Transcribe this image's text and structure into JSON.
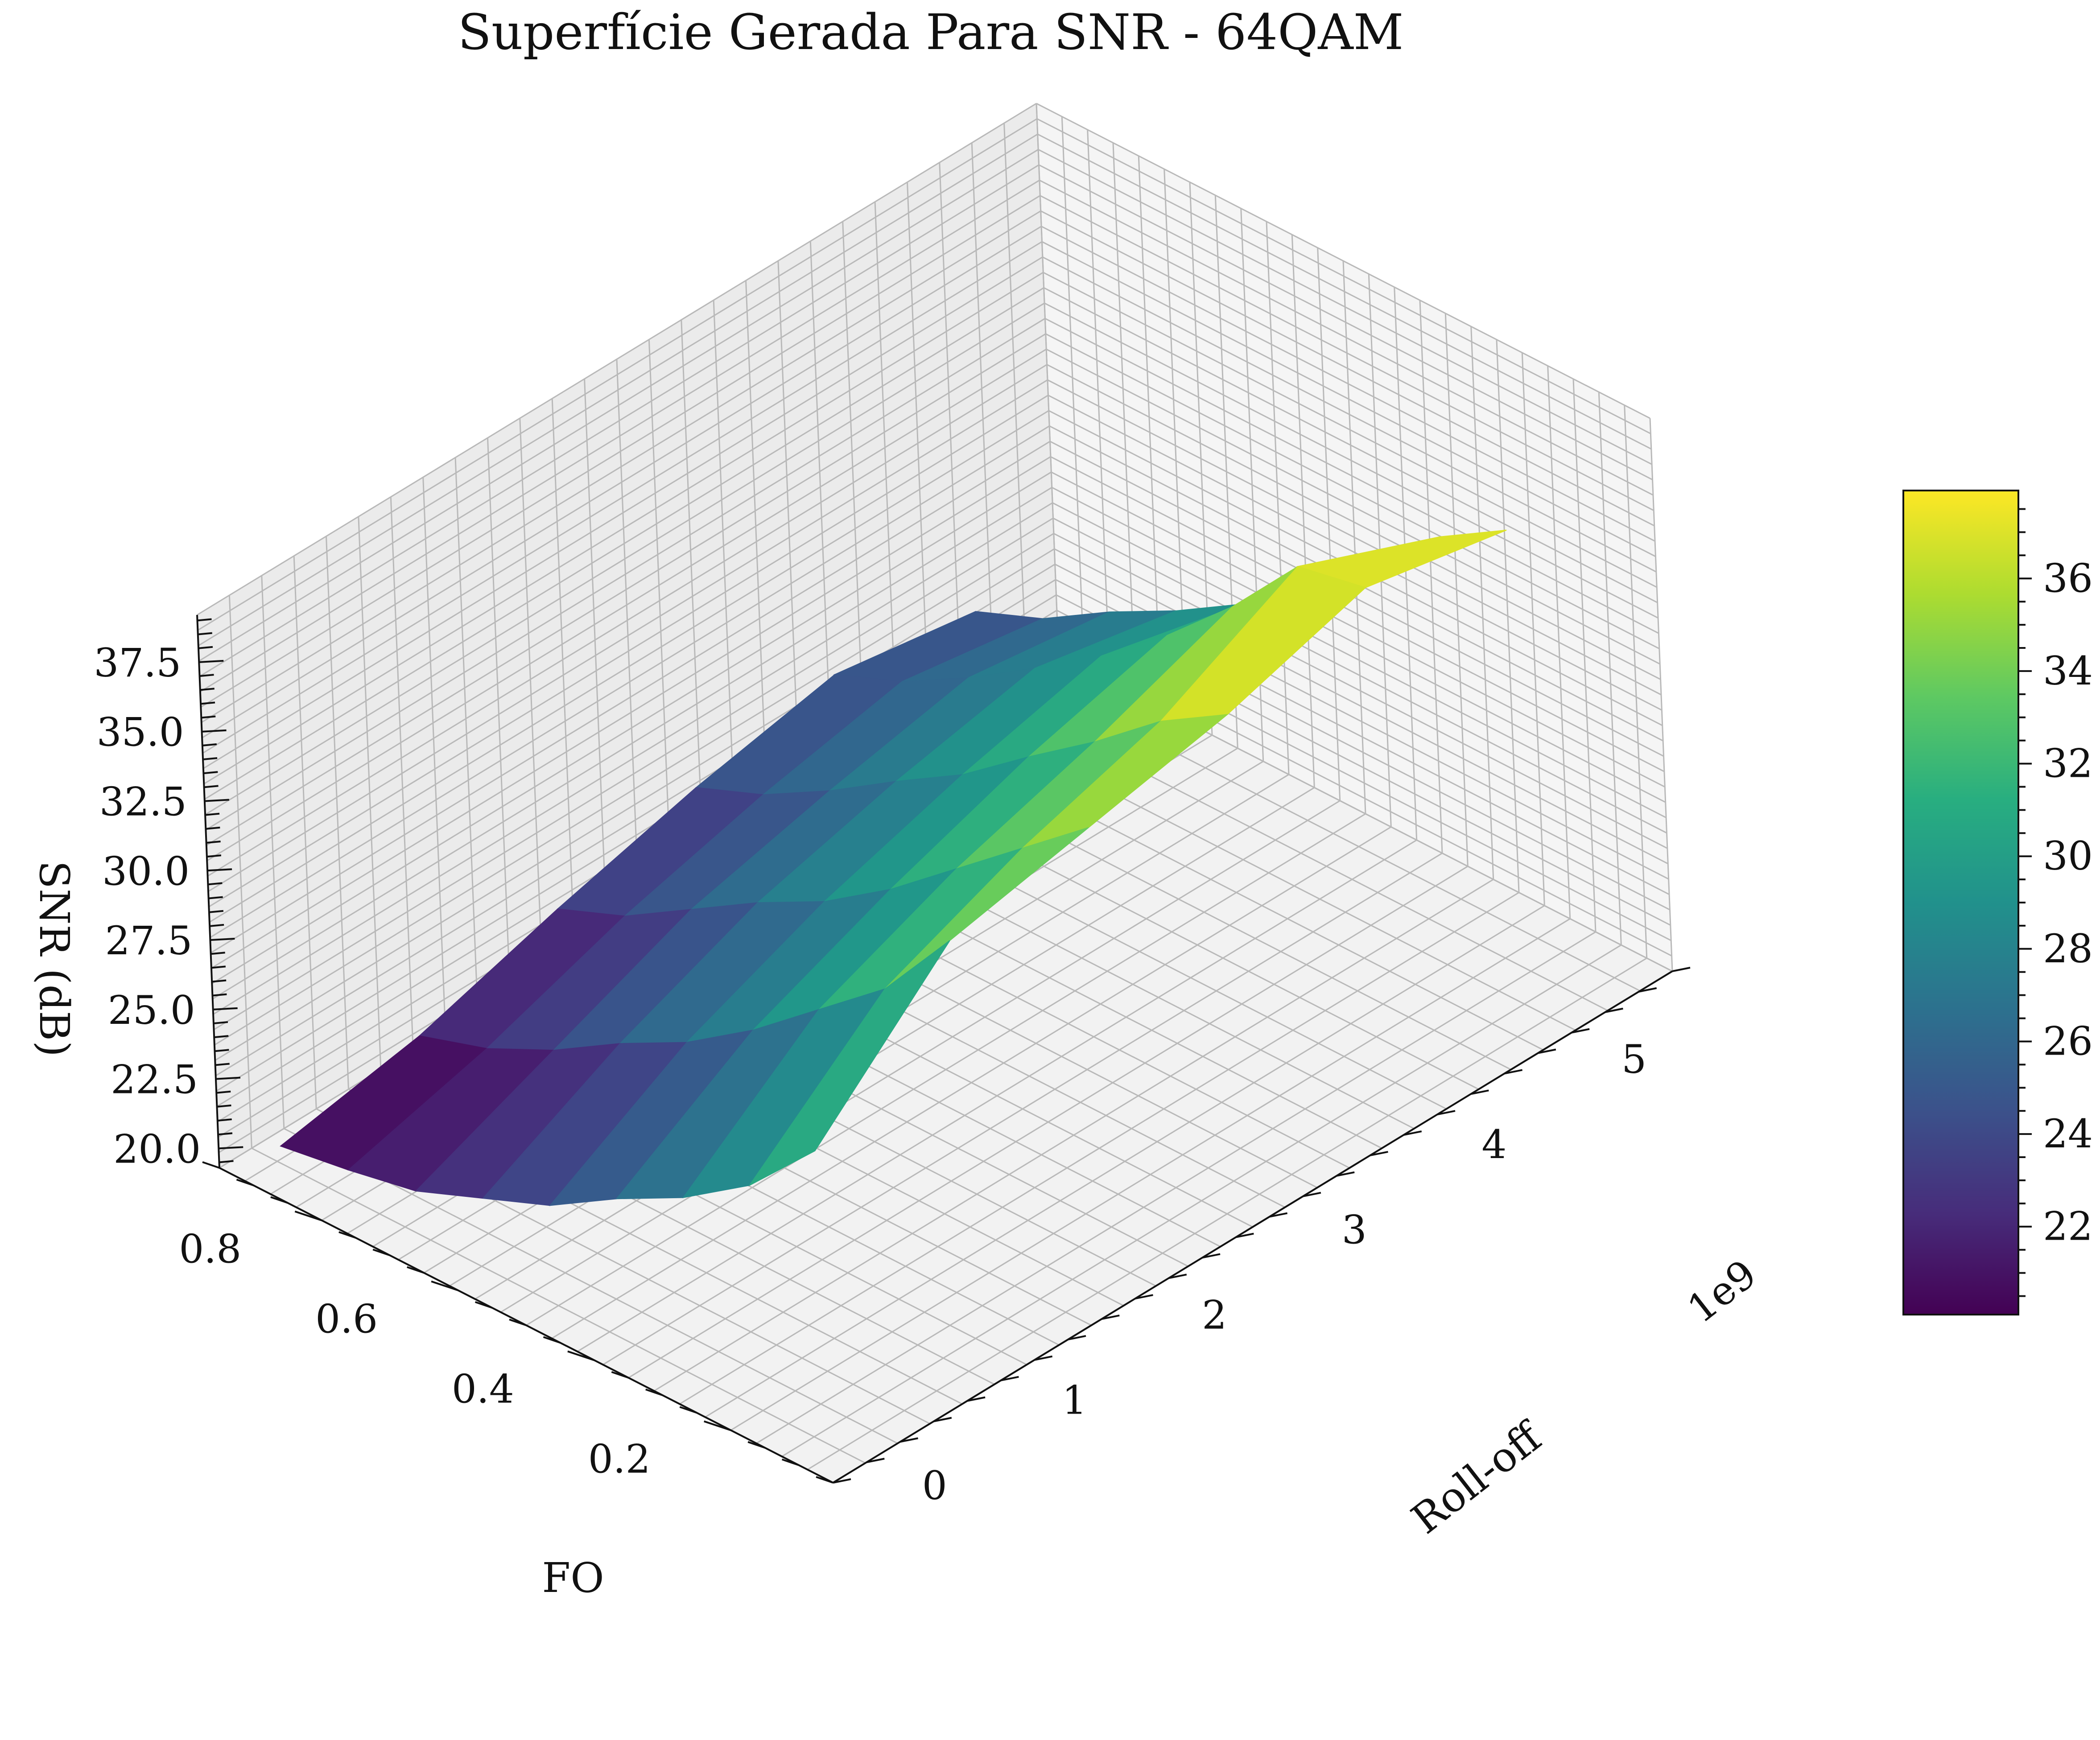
{
  "chart_data": {
    "type": "surface",
    "title": "Superfície Gerada Para SNR - 64QAM",
    "xlabel": "FO",
    "ylabel": "Roll-off",
    "zlabel": "SNR (dB)",
    "y_offset_text": "1e9",
    "x_ticks": [
      "0.2",
      "0.4",
      "0.6",
      "0.8"
    ],
    "y_ticks": [
      "0",
      "1",
      "2",
      "3",
      "4",
      "5"
    ],
    "z_ticks": [
      "20.0",
      "22.5",
      "25.0",
      "27.5",
      "30.0",
      "32.5",
      "35.0",
      "37.5"
    ],
    "colorbar_ticks": [
      "22",
      "24",
      "26",
      "28",
      "30",
      "32",
      "34",
      "36"
    ],
    "colormap": "viridis",
    "colorbar_range": [
      20.1,
      37.9
    ],
    "xlim": [
      0.05,
      0.95
    ],
    "ylim": [
      -0.2,
      5.8
    ],
    "zlim": [
      19.3,
      39.2
    ],
    "fo_values": [
      0.1,
      0.2,
      0.3,
      0.4,
      0.5,
      0.6,
      0.7,
      0.8,
      0.9
    ],
    "rolloff_values_e9": [
      0,
      1,
      2,
      3,
      4,
      5
    ],
    "snr_grid": [
      [
        30.0,
        34.5,
        35.5,
        36.5,
        38.0,
        37.0
      ],
      [
        27.5,
        31.5,
        33.5,
        35.0,
        37.5,
        35.5
      ],
      [
        25.8,
        29.5,
        31.5,
        33.0,
        34.8,
        33.0
      ],
      [
        24.5,
        27.5,
        29.5,
        31.2,
        32.5,
        31.0
      ],
      [
        23.0,
        25.8,
        27.8,
        29.3,
        30.5,
        29.3
      ],
      [
        22.0,
        24.5,
        26.5,
        27.8,
        28.8,
        27.8
      ],
      [
        21.0,
        23.0,
        25.0,
        26.2,
        27.2,
        26.5
      ],
      [
        20.5,
        21.8,
        23.5,
        24.8,
        25.8,
        25.0
      ],
      [
        20.1,
        21.0,
        22.5,
        23.8,
        24.8,
        24.0
      ]
    ]
  }
}
